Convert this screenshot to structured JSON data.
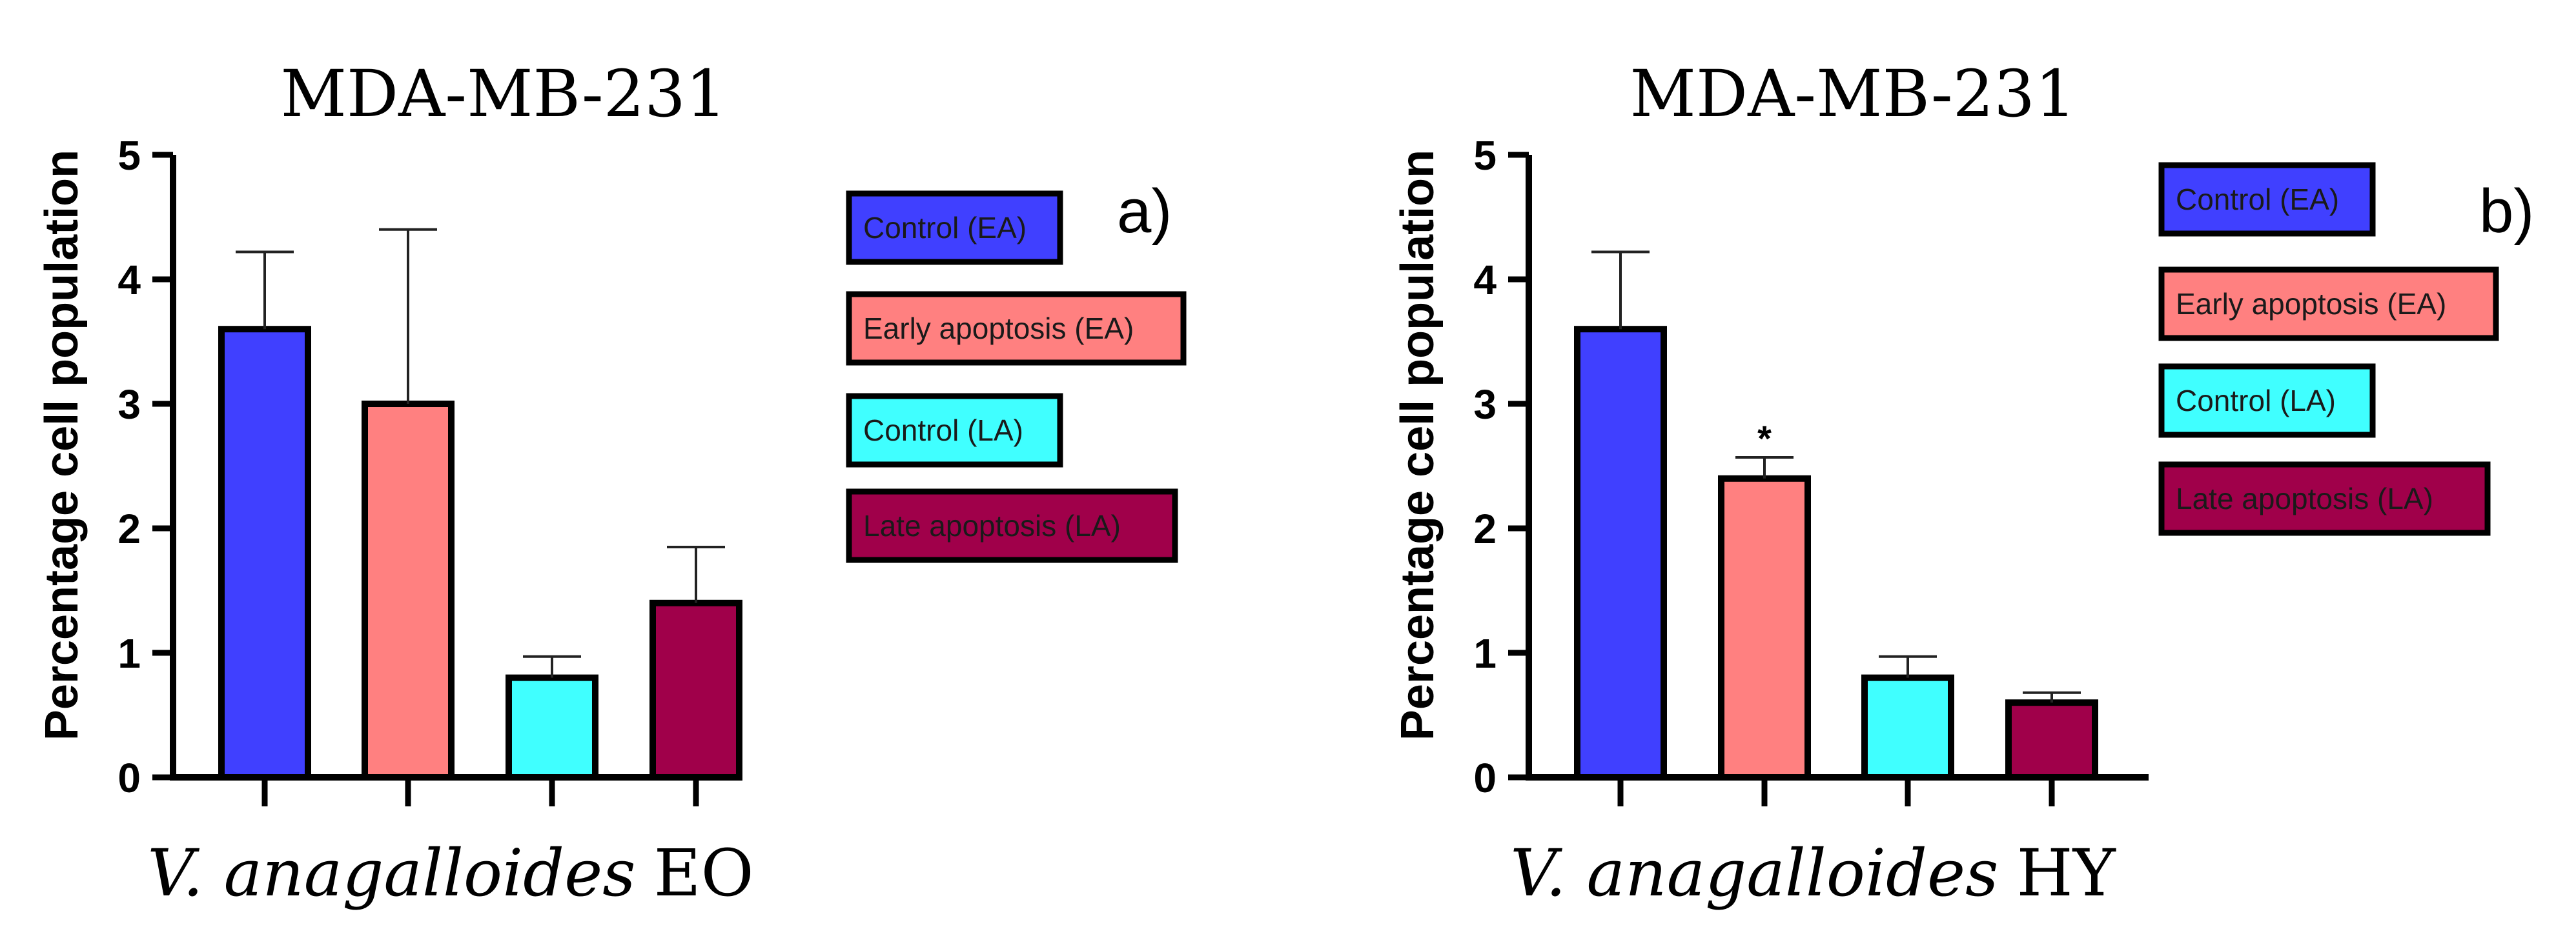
{
  "colors": {
    "control_ea": "#4040ff",
    "early_apoptosis_ea": "#ff8080",
    "control_la": "#40ffff",
    "late_apoptosis_la": "#a0004a"
  },
  "legend": [
    {
      "label": "Control (EA)",
      "color_key": "control_ea"
    },
    {
      "label": "Early apoptosis (EA)",
      "color_key": "early_apoptosis_ea"
    },
    {
      "label": "Control (LA)",
      "color_key": "control_la"
    },
    {
      "label": "Late apoptosis (LA)",
      "color_key": "late_apoptosis_la"
    }
  ],
  "chart_data": [
    {
      "type": "bar",
      "panel_label": "a)",
      "title": "MDA-MB-231",
      "xlabel_italic": "V. anagalloides",
      "xlabel_suffix": "EO",
      "ylabel": "Percentage cell population",
      "ylim": [
        0,
        5
      ],
      "yticks": [
        "0",
        "1",
        "2",
        "3",
        "4",
        "5"
      ],
      "categories": [
        "Control (EA)",
        "Early apoptosis (EA)",
        "Control (LA)",
        "Late apoptosis (LA)"
      ],
      "values": [
        3.6,
        3.0,
        0.8,
        1.4
      ],
      "errors": [
        0.62,
        1.4,
        0.17,
        0.45
      ],
      "significance": [
        "",
        "",
        "",
        ""
      ]
    },
    {
      "type": "bar",
      "panel_label": "b)",
      "title": "MDA-MB-231",
      "xlabel_italic": "V. anagalloides",
      "xlabel_suffix": "HY",
      "ylabel": "Percentage cell population",
      "ylim": [
        0,
        5
      ],
      "yticks": [
        "0",
        "1",
        "2",
        "3",
        "4",
        "5"
      ],
      "categories": [
        "Control (EA)",
        "Early apoptosis (EA)",
        "Control (LA)",
        "Late apoptosis (LA)"
      ],
      "values": [
        3.6,
        2.4,
        0.8,
        0.6
      ],
      "errors": [
        0.62,
        0.17,
        0.17,
        0.08
      ],
      "significance": [
        "",
        "*",
        "",
        ""
      ]
    }
  ]
}
